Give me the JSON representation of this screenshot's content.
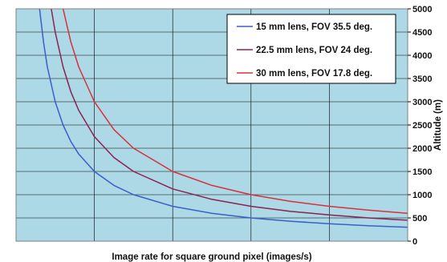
{
  "chart_data": {
    "type": "line",
    "xlabel": "Image rate for square ground pixel (images/s)",
    "ylabel": "Altitude (m)",
    "xlim": [
      0,
      5
    ],
    "ylim": [
      0,
      5000
    ],
    "yticks": [
      0,
      500,
      1000,
      1500,
      2000,
      2500,
      3000,
      3500,
      4000,
      4500,
      5000
    ],
    "x_tick_labels_visible": false,
    "grid": true,
    "legend_position": "top-right",
    "plot_background": "#add8e6",
    "series": [
      {
        "name": "15 mm lens, FOV 35.5 deg.",
        "color": "#3a5fcd",
        "x": [
          0.3,
          0.35,
          0.4,
          0.5,
          0.6,
          0.7,
          0.8,
          1.0,
          1.25,
          1.5,
          2.0,
          2.5,
          3.0,
          3.5,
          4.0,
          4.5,
          5.0
        ],
        "y": [
          5000,
          4286,
          3750,
          3000,
          2500,
          2143,
          1875,
          1500,
          1200,
          1000,
          750,
          600,
          500,
          429,
          375,
          333,
          300
        ]
      },
      {
        "name": "22.5 mm lens, FOV 24 deg.",
        "color": "#8b2252",
        "x": [
          0.45,
          0.5,
          0.6,
          0.7,
          0.8,
          1.0,
          1.25,
          1.5,
          2.0,
          2.5,
          3.0,
          3.5,
          4.0,
          4.5,
          5.0
        ],
        "y": [
          5000,
          4500,
          3750,
          3214,
          2813,
          2250,
          1800,
          1500,
          1125,
          900,
          750,
          643,
          563,
          500,
          450
        ]
      },
      {
        "name": "30 mm lens, FOV 17.8 deg.",
        "color": "#d9303c",
        "x": [
          0.6,
          0.7,
          0.8,
          1.0,
          1.25,
          1.5,
          2.0,
          2.5,
          3.0,
          3.5,
          4.0,
          4.5,
          5.0
        ],
        "y": [
          5000,
          4286,
          3750,
          3000,
          2400,
          2000,
          1500,
          1200,
          1000,
          857,
          750,
          667,
          600
        ]
      }
    ]
  }
}
